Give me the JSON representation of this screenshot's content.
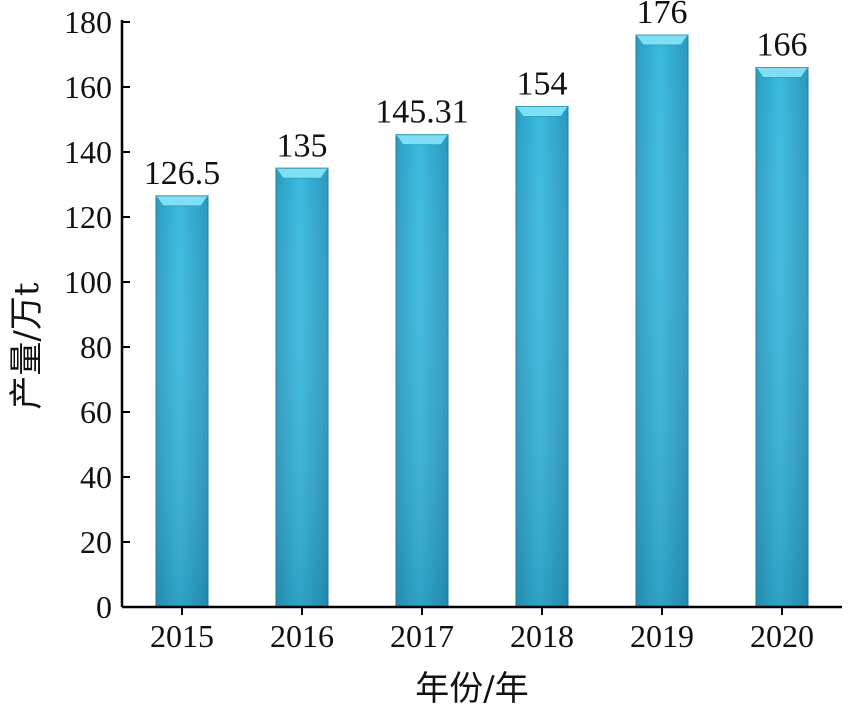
{
  "chart_data": {
    "type": "bar",
    "title": "",
    "xlabel": "年份/年",
    "ylabel": "产量/万t",
    "categories": [
      "2015",
      "2016",
      "2017",
      "2018",
      "2019",
      "2020"
    ],
    "values": [
      126.5,
      135,
      145.31,
      154,
      176,
      166
    ],
    "data_labels": [
      "126.5",
      "135",
      "145.31",
      "154",
      "176",
      "166"
    ],
    "ylim": [
      0,
      180
    ],
    "yticks": [
      0,
      20,
      40,
      60,
      80,
      100,
      120,
      140,
      160,
      180
    ],
    "grid": false,
    "legend": "none",
    "colors": {
      "bar_top": "#7fe0f5",
      "bar_main": "#37b6dc",
      "bar_dark": "#1f8fb2",
      "axis": "#000000"
    }
  }
}
